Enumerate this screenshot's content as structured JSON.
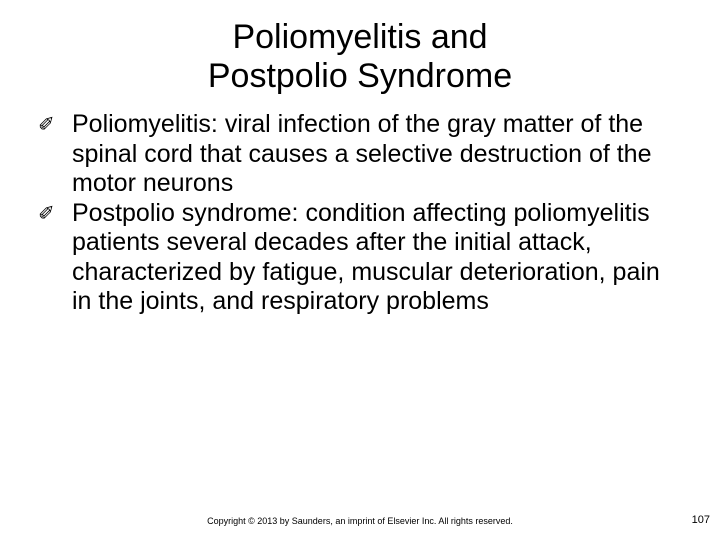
{
  "title": {
    "line1": "Poliomyelitis and",
    "line2": "Postpolio Syndrome"
  },
  "bullets": [
    {
      "glyph": "✐",
      "text": "Poliomyelitis: viral infection of the gray matter of the spinal cord that causes a selective destruction of the motor neurons"
    },
    {
      "glyph": "✐",
      "text": "Postpolio syndrome: condition affecting poliomyelitis patients several decades after the initial attack, characterized by fatigue, muscular deterioration, pain in the joints, and respiratory problems"
    }
  ],
  "footer": {
    "copyright": "Copyright © 2013 by Saunders, an imprint of Elsevier Inc. All rights reserved.",
    "page": "107"
  }
}
